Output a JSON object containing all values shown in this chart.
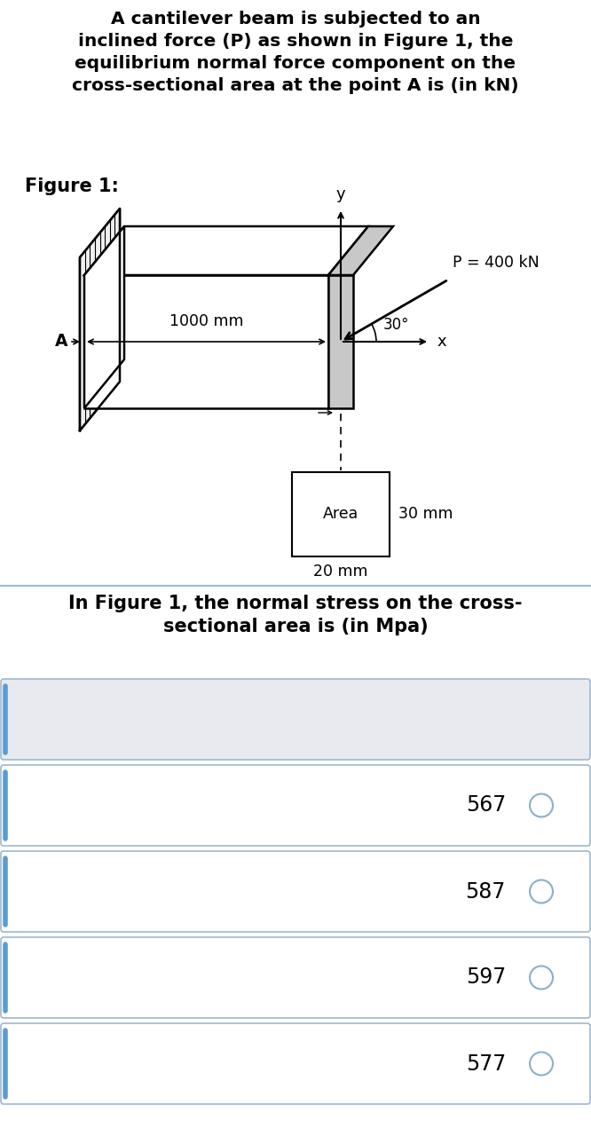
{
  "title_text": "A cantilever beam is subjected to an\ninclined force (P) as shown in Figure 1, the\nequilibrium normal force component on the\ncross-sectional area at the point A is (in kN)",
  "figure_label": "Figure 1:",
  "P_label": "P = 400 kN",
  "angle_label": "30°",
  "length_label": "1000 mm",
  "A_label": "A",
  "x_label": "x",
  "y_label": "y",
  "area_label": "Area",
  "width_label": "30 mm",
  "height_label": "20 mm",
  "question2": "In Figure 1, the normal stress on the cross-\nsectional area is (in Mpa)",
  "options": [
    "567",
    "587",
    "597",
    "577"
  ],
  "bg_color": "#ffffff",
  "beam_fill": "#ffffff",
  "beam_edge": "#000000",
  "cross_section_fill": "#c8c8c8",
  "option_bg": "#ffffff",
  "option_bg_first": "#e8eaf0",
  "divider_color": "#a0b8d0",
  "left_border_color": "#5b9bd5",
  "text_color": "#000000",
  "title_fontsize": 14.5,
  "label_fontsize": 13,
  "option_fontsize": 17
}
